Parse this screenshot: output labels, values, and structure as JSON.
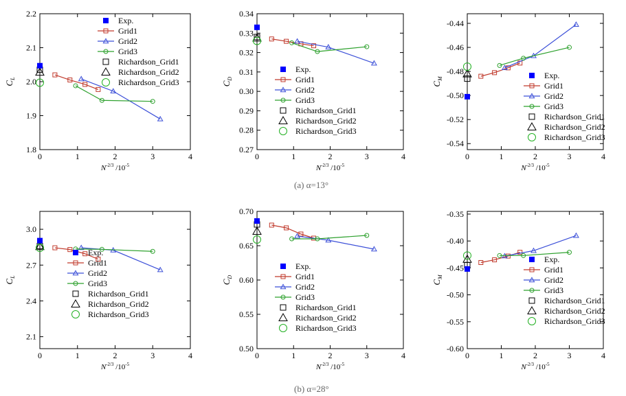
{
  "captions": {
    "a": "(a) α=13°",
    "b": "(b) α=28°"
  },
  "common": {
    "xlabel_main": "N",
    "xlabel_exp": "-2/3",
    "xlabel_suffix": "/10",
    "xlabel_scale": "-5",
    "xticks": [
      "0",
      "1",
      "2",
      "3",
      "4"
    ],
    "legend": [
      "Exp.",
      "Grid1",
      "Grid2",
      "Grid3",
      "Richardson_Grid1",
      "Richardson_Grid2",
      "Richardson_Grid3"
    ],
    "colors": {
      "exp": "#0000ff",
      "grid1": "#c0392b",
      "grid2": "#3b4fd8",
      "grid3": "#2ca02c",
      "rich1": "#000000",
      "rich2": "#000000",
      "rich3": "#22b022"
    }
  },
  "chart_data": [
    {
      "id": "a-cl",
      "type": "line",
      "ylabel_main": "C",
      "ylabel_sub": "L",
      "ylim": [
        1.8,
        2.2
      ],
      "yticks": [
        "1.8",
        "1.9",
        "2.0",
        "2.1",
        "2.2"
      ],
      "xlim": [
        0,
        4
      ],
      "exp": [
        0,
        2.047
      ],
      "series": [
        {
          "name": "Grid1",
          "x": [
            0.4,
            0.8,
            1.2,
            1.55
          ],
          "y": [
            2.02,
            2.005,
            1.992,
            1.977
          ]
        },
        {
          "name": "Grid2",
          "x": [
            1.1,
            1.95,
            3.2
          ],
          "y": [
            2.008,
            1.972,
            1.89
          ]
        },
        {
          "name": "Grid3",
          "x": [
            0.95,
            1.65,
            3.0
          ],
          "y": [
            1.988,
            1.945,
            1.942
          ]
        }
      ],
      "richardson": [
        2.035,
        2.028,
        1.997
      ]
    },
    {
      "id": "a-cd",
      "type": "line",
      "ylabel_main": "C",
      "ylabel_sub": "D",
      "ylim": [
        0.27,
        0.34
      ],
      "yticks": [
        "0.27",
        "0.28",
        "0.29",
        "0.30",
        "0.31",
        "0.32",
        "0.33",
        "0.34"
      ],
      "xlim": [
        0,
        4
      ],
      "exp": [
        0,
        0.333
      ],
      "series": [
        {
          "name": "Grid1",
          "x": [
            0.4,
            0.8,
            1.2,
            1.55
          ],
          "y": [
            0.327,
            0.3258,
            0.3245,
            0.3235
          ]
        },
        {
          "name": "Grid2",
          "x": [
            1.1,
            1.95,
            3.2
          ],
          "y": [
            0.3258,
            0.3228,
            0.3145
          ]
        },
        {
          "name": "Grid3",
          "x": [
            0.95,
            1.65,
            3.0
          ],
          "y": [
            0.325,
            0.3205,
            0.323
          ]
        }
      ],
      "richardson": [
        0.328,
        0.3275,
        0.326
      ]
    },
    {
      "id": "a-cm",
      "type": "line",
      "ylabel_main": "C",
      "ylabel_sub": "M",
      "ylim": [
        -0.545,
        -0.432
      ],
      "yticks": [
        "-0.54",
        "-0.52",
        "-0.50",
        "-0.48",
        "-0.46",
        "-0.44"
      ],
      "xlim": [
        0,
        4
      ],
      "exp": [
        0,
        -0.501
      ],
      "series": [
        {
          "name": "Grid1",
          "x": [
            0.4,
            0.8,
            1.2,
            1.55
          ],
          "y": [
            -0.484,
            -0.481,
            -0.477,
            -0.473
          ]
        },
        {
          "name": "Grid2",
          "x": [
            1.1,
            1.95,
            3.2
          ],
          "y": [
            -0.477,
            -0.467,
            -0.441
          ]
        },
        {
          "name": "Grid3",
          "x": [
            0.95,
            1.65,
            3.0
          ],
          "y": [
            -0.475,
            -0.469,
            -0.46
          ]
        }
      ],
      "richardson": [
        -0.486,
        -0.482,
        -0.476
      ]
    },
    {
      "id": "b-cl",
      "type": "line",
      "ylabel_main": "C",
      "ylabel_sub": "L",
      "ylim": [
        2.0,
        3.15
      ],
      "yticks": [
        "2.1",
        "2.4",
        "2.7",
        "3.0"
      ],
      "xlim": [
        0,
        4
      ],
      "exp": [
        0,
        2.905
      ],
      "series": [
        {
          "name": "Grid1",
          "x": [
            0.4,
            0.8,
            1.2,
            1.55
          ],
          "y": [
            2.845,
            2.83,
            2.795,
            2.75
          ]
        },
        {
          "name": "Grid2",
          "x": [
            1.1,
            1.95,
            3.2
          ],
          "y": [
            2.845,
            2.825,
            2.66
          ]
        },
        {
          "name": "Grid3",
          "x": [
            0.95,
            1.65,
            3.0
          ],
          "y": [
            2.835,
            2.832,
            2.815
          ]
        }
      ],
      "richardson": [
        2.86,
        2.855,
        2.845
      ]
    },
    {
      "id": "b-cd",
      "type": "line",
      "ylabel_main": "C",
      "ylabel_sub": "D",
      "ylim": [
        0.5,
        0.7
      ],
      "yticks": [
        "0.50",
        "0.55",
        "0.60",
        "0.65",
        "0.70"
      ],
      "xlim": [
        0,
        4
      ],
      "exp": [
        0,
        0.686
      ],
      "series": [
        {
          "name": "Grid1",
          "x": [
            0.4,
            0.8,
            1.2,
            1.55
          ],
          "y": [
            0.68,
            0.676,
            0.667,
            0.661
          ]
        },
        {
          "name": "Grid2",
          "x": [
            1.1,
            1.95,
            3.2
          ],
          "y": [
            0.664,
            0.658,
            0.645
          ]
        },
        {
          "name": "Grid3",
          "x": [
            0.95,
            1.65,
            3.0
          ],
          "y": [
            0.66,
            0.66,
            0.665
          ]
        }
      ],
      "richardson": [
        0.681,
        0.671,
        0.659
      ]
    },
    {
      "id": "b-cm",
      "type": "line",
      "ylabel_main": "C",
      "ylabel_sub": "M",
      "ylim": [
        -0.6,
        -0.345
      ],
      "yticks": [
        "-0.60",
        "-0.55",
        "-0.50",
        "-0.45",
        "-0.40",
        "-0.35"
      ],
      "xlim": [
        0,
        4
      ],
      "exp": [
        0,
        -0.452
      ],
      "series": [
        {
          "name": "Grid1",
          "x": [
            0.4,
            0.8,
            1.2,
            1.55
          ],
          "y": [
            -0.44,
            -0.435,
            -0.428,
            -0.421
          ]
        },
        {
          "name": "Grid2",
          "x": [
            1.1,
            1.95,
            3.2
          ],
          "y": [
            -0.428,
            -0.418,
            -0.39
          ]
        },
        {
          "name": "Grid3",
          "x": [
            0.95,
            1.65,
            3.0
          ],
          "y": [
            -0.427,
            -0.427,
            -0.421
          ]
        }
      ],
      "richardson": [
        -0.445,
        -0.434,
        -0.427
      ]
    }
  ]
}
